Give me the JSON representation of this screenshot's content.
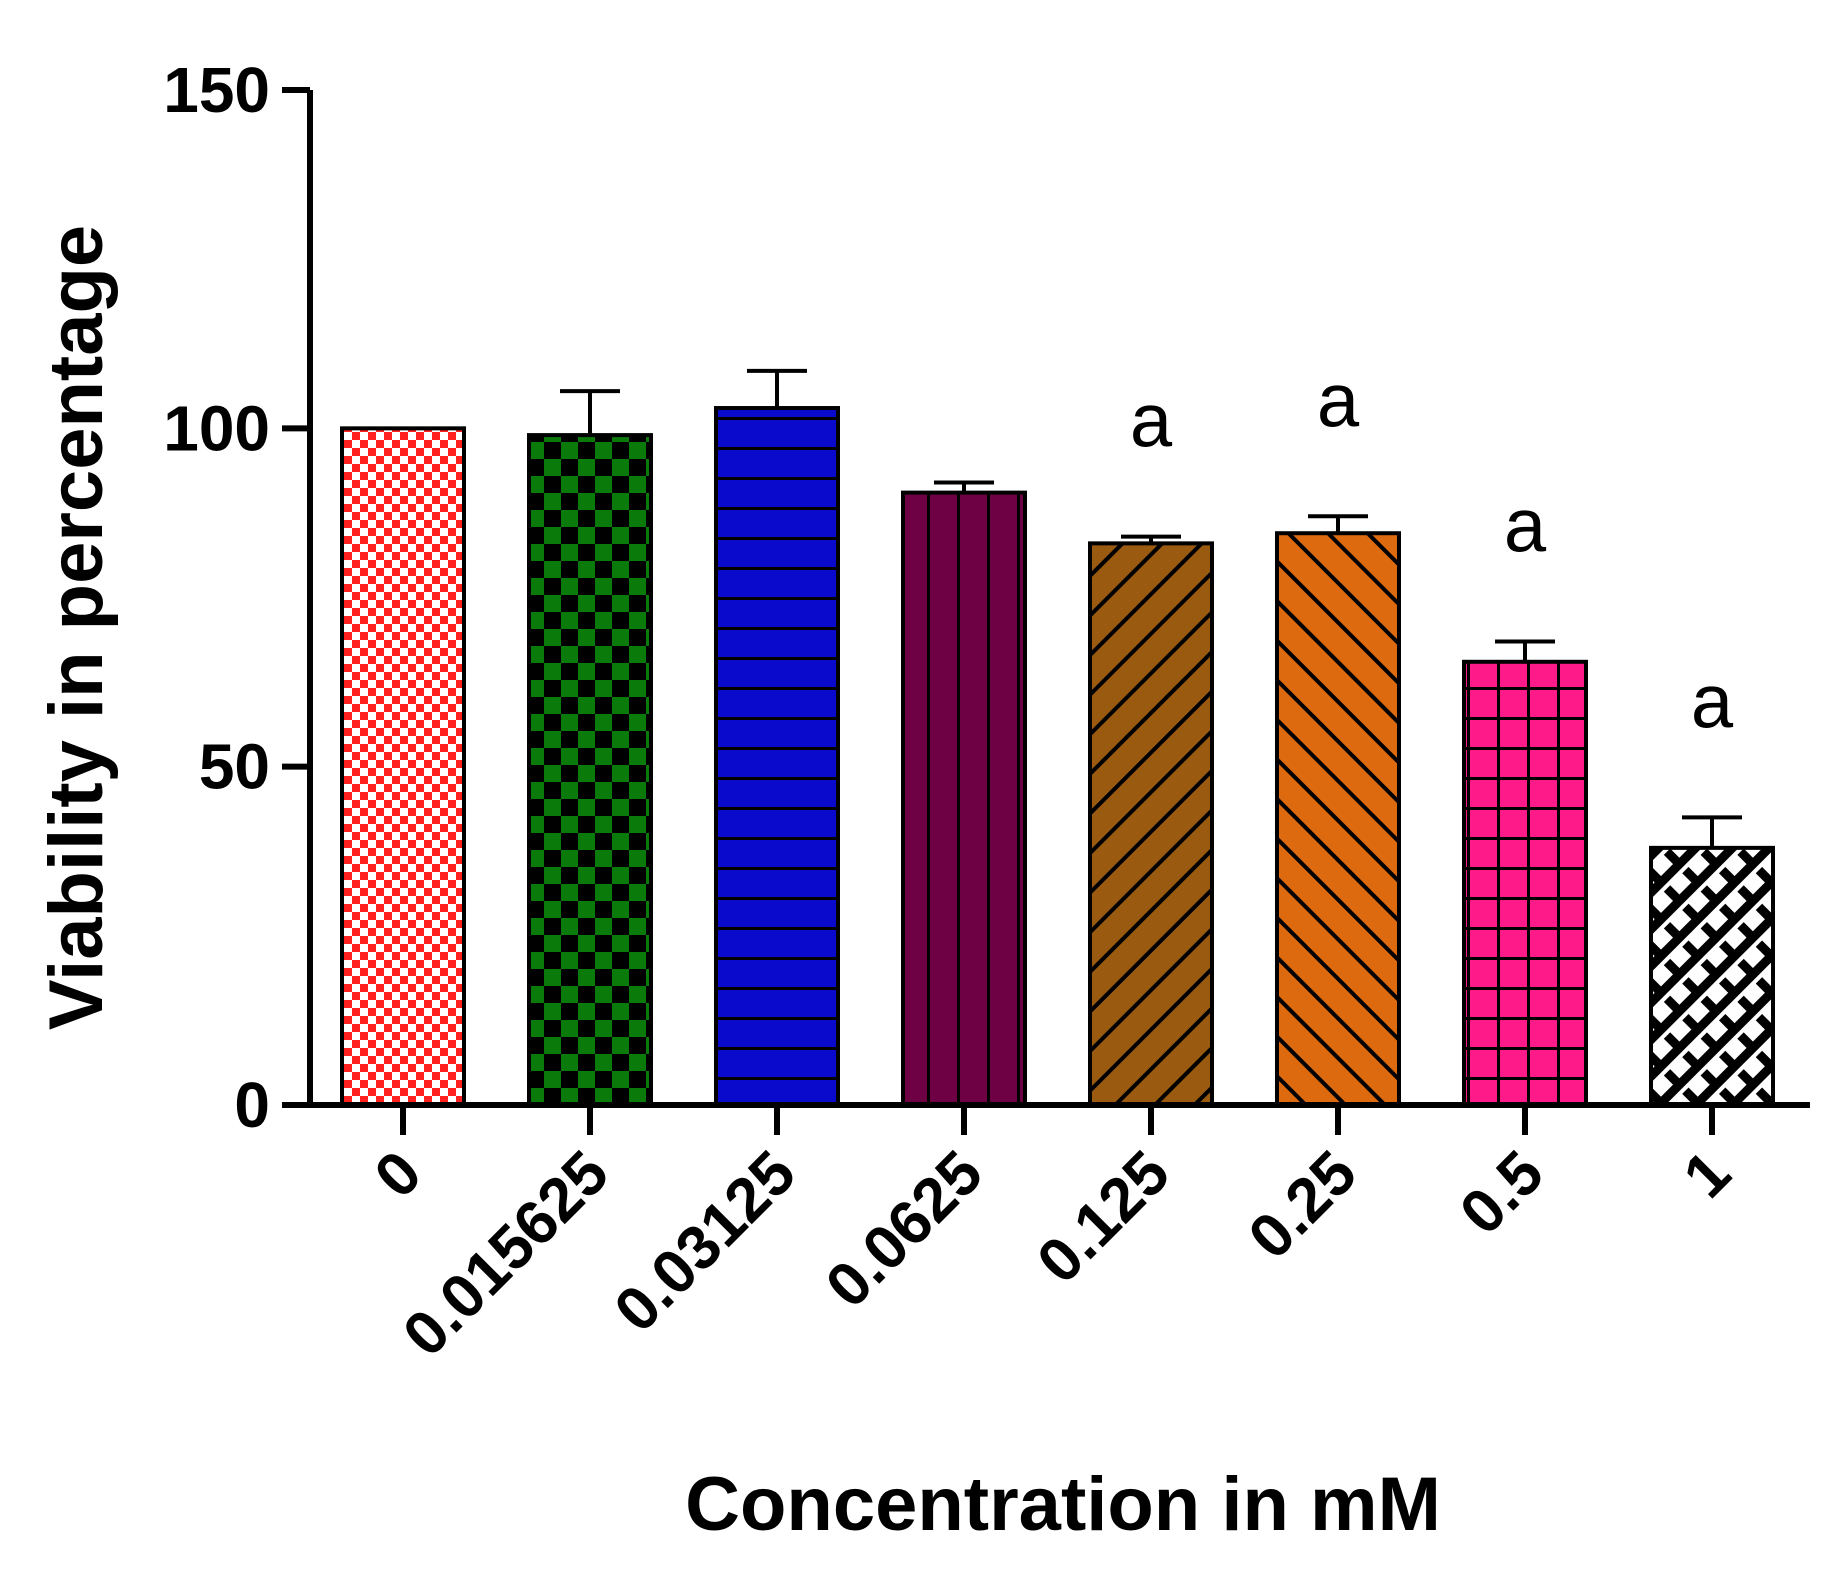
{
  "chart_data": {
    "type": "bar",
    "title": "",
    "xlabel": "Concentration in mM",
    "ylabel": "Viability in percentage",
    "ylim": [
      0,
      150
    ],
    "yticks": [
      "0",
      "50",
      "100",
      "150"
    ],
    "categories": [
      "0",
      "0.015625",
      "0.03125",
      "0.0625",
      "0.125",
      "0.25",
      "0.5",
      "1"
    ],
    "values": [
      100,
      99,
      103,
      90.5,
      83,
      84.5,
      65.5,
      38
    ],
    "errors": [
      0,
      6.5,
      5.5,
      1.5,
      1,
      2.5,
      3,
      4.5
    ],
    "annotations": [
      "",
      "",
      "",
      "",
      "a",
      "a",
      "a",
      "a"
    ],
    "colors": [
      "#ff2020",
      "#0a7a0a",
      "#0a0acc",
      "#6e0044",
      "#9a5a10",
      "#dd6a0e",
      "#ff1a8a",
      "#000000"
    ],
    "patterns": [
      "checker-fine",
      "checker",
      "horizontal",
      "vertical",
      "diag-up",
      "diag-down",
      "grid",
      "bricks"
    ]
  }
}
